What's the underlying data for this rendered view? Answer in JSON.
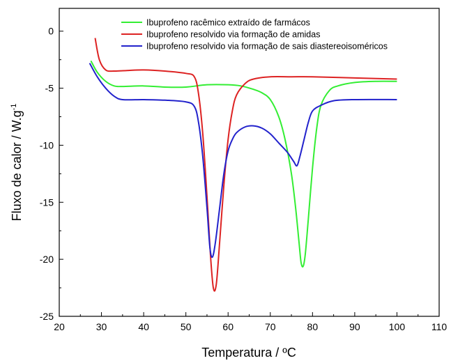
{
  "chart_data": {
    "type": "line",
    "xlabel": "Temperatura / ºC",
    "ylabel": "Fluxo de calor / W.g",
    "ylabel_sup": "-1",
    "xlim": [
      20,
      110
    ],
    "ylim": [
      -25,
      2
    ],
    "x_ticks": [
      20,
      30,
      40,
      50,
      60,
      70,
      80,
      90,
      100,
      110
    ],
    "x_tick_labels": [
      "20",
      "30",
      "40",
      "50",
      "60",
      "70",
      "80",
      "90",
      "100",
      "110"
    ],
    "y_ticks": [
      0,
      -5,
      -10,
      -15,
      -20,
      -25
    ],
    "y_tick_labels": [
      "0",
      "-5",
      "-10",
      "-15",
      "-20",
      "-25"
    ],
    "grid": false,
    "legend_position": "top-right",
    "series": [
      {
        "name": "Ibuprofeno racêmico extraído de farmácos",
        "color": "#33ee33",
        "x": [
          27.5,
          29,
          31,
          33,
          35,
          40,
          45,
          50,
          55,
          60,
          63,
          66,
          68,
          70,
          72,
          73.5,
          75,
          76,
          76.8,
          77.3,
          77.8,
          78.3,
          79,
          80,
          81,
          82,
          84,
          86,
          90,
          95,
          100
        ],
        "y": [
          -2.6,
          -3.6,
          -4.4,
          -4.8,
          -4.85,
          -4.8,
          -4.9,
          -4.9,
          -4.7,
          -4.7,
          -4.8,
          -5.1,
          -5.4,
          -6.0,
          -7.5,
          -9.5,
          -12.5,
          -15.5,
          -18.5,
          -20.3,
          -20.6,
          -19.5,
          -16.5,
          -12.0,
          -8.5,
          -6.5,
          -5.2,
          -4.8,
          -4.5,
          -4.4,
          -4.4
        ]
      },
      {
        "name": "Ibuprofeno resolvido via formação de amidas",
        "color": "#dd2222",
        "x": [
          28.5,
          29.5,
          31,
          33,
          36,
          40,
          45,
          50,
          52,
          53,
          54,
          55,
          55.8,
          56.5,
          57.2,
          58,
          59,
          60,
          61,
          62,
          64,
          66,
          70,
          75,
          80,
          90,
          100
        ],
        "y": [
          -0.6,
          -2.5,
          -3.4,
          -3.5,
          -3.45,
          -3.4,
          -3.5,
          -3.7,
          -4.0,
          -5.5,
          -9.0,
          -14.5,
          -19.5,
          -22.5,
          -22.2,
          -18.5,
          -13.5,
          -9.5,
          -7.0,
          -5.6,
          -4.6,
          -4.2,
          -4.0,
          -4.0,
          -4.0,
          -4.1,
          -4.2
        ]
      },
      {
        "name": "Ibuprofeno resolvido via formação de sais diastereoisoméricos",
        "color": "#2222cc",
        "x": [
          27.2,
          29,
          31,
          33,
          35,
          40,
          45,
          50,
          52,
          53,
          54,
          55,
          55.7,
          56.3,
          57,
          58,
          59,
          60,
          61,
          62,
          64,
          66,
          68,
          70,
          72,
          74,
          75.5,
          76.3,
          77,
          78,
          79,
          80,
          82,
          85,
          90,
          100
        ],
        "y": [
          -2.8,
          -4.0,
          -5.0,
          -5.7,
          -6.0,
          -6.0,
          -6.05,
          -6.2,
          -6.6,
          -8.0,
          -11.0,
          -15.5,
          -19.0,
          -19.8,
          -18.5,
          -15.5,
          -12.5,
          -10.5,
          -9.5,
          -8.9,
          -8.4,
          -8.3,
          -8.5,
          -9.0,
          -9.8,
          -10.6,
          -11.4,
          -11.8,
          -11.0,
          -9.5,
          -8.0,
          -7.0,
          -6.5,
          -6.1,
          -6.0,
          -6.0
        ]
      }
    ]
  }
}
